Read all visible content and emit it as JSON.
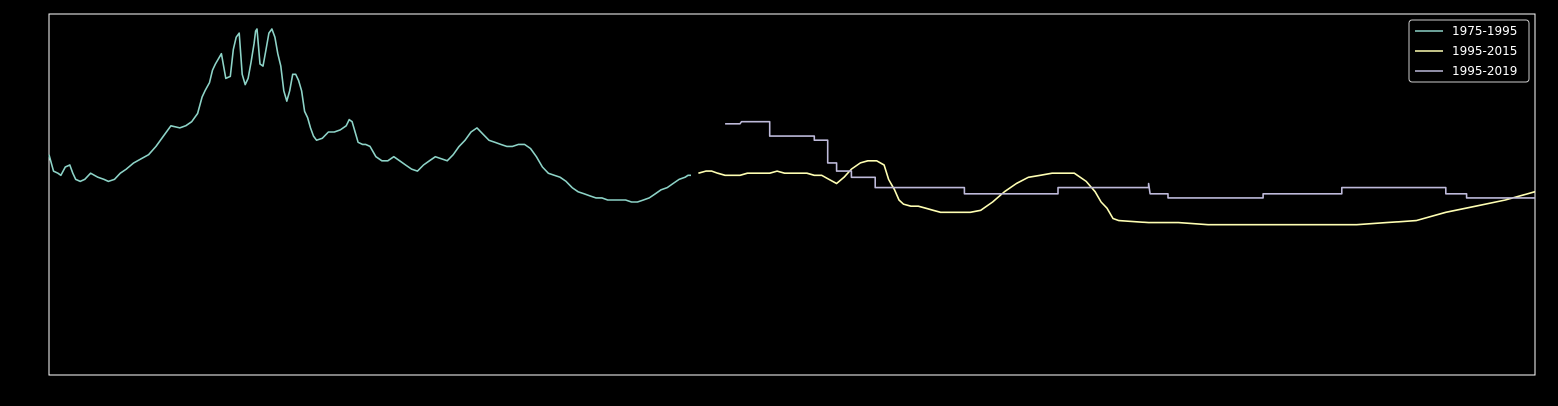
{
  "chart_data": {
    "type": "line",
    "title": "",
    "xlabel": "",
    "ylabel": "",
    "xlim": [
      0,
      1000
    ],
    "ylim": [
      0,
      100
    ],
    "grid": false,
    "axes_visible": false,
    "background": "#000000",
    "legend_position": "top-right",
    "series": [
      {
        "name": "1975-1995",
        "color": "#8dd3c7",
        "points": [
          [
            0,
            39
          ],
          [
            3,
            31
          ],
          [
            6,
            30
          ],
          [
            8,
            29
          ],
          [
            11,
            33
          ],
          [
            14,
            34
          ],
          [
            16,
            30
          ],
          [
            18,
            27
          ],
          [
            21,
            26
          ],
          [
            24,
            27
          ],
          [
            28,
            30
          ],
          [
            33,
            28
          ],
          [
            37,
            27
          ],
          [
            40,
            26
          ],
          [
            44,
            27
          ],
          [
            48,
            30
          ],
          [
            52,
            32
          ],
          [
            57,
            35
          ],
          [
            62,
            37
          ],
          [
            67,
            39
          ],
          [
            72,
            43
          ],
          [
            77,
            48
          ],
          [
            82,
            53
          ],
          [
            88,
            52
          ],
          [
            92,
            53
          ],
          [
            96,
            55
          ],
          [
            100,
            59
          ],
          [
            103,
            67
          ],
          [
            105,
            70
          ],
          [
            108,
            74
          ],
          [
            110,
            80
          ],
          [
            112,
            83
          ],
          [
            116,
            88
          ],
          [
            119,
            76
          ],
          [
            122,
            77
          ],
          [
            124,
            90
          ],
          [
            126,
            96
          ],
          [
            128,
            98
          ],
          [
            130,
            78
          ],
          [
            132,
            73
          ],
          [
            134,
            76
          ],
          [
            136,
            84
          ],
          [
            138,
            93
          ],
          [
            139,
            99
          ],
          [
            140,
            100
          ],
          [
            142,
            83
          ],
          [
            144,
            82
          ],
          [
            146,
            90
          ],
          [
            148,
            98
          ],
          [
            150,
            100
          ],
          [
            152,
            96
          ],
          [
            154,
            88
          ],
          [
            156,
            82
          ],
          [
            158,
            70
          ],
          [
            160,
            65
          ],
          [
            162,
            70
          ],
          [
            164,
            78
          ],
          [
            166,
            78
          ],
          [
            168,
            75
          ],
          [
            170,
            70
          ],
          [
            172,
            60
          ],
          [
            174,
            57
          ],
          [
            176,
            52
          ],
          [
            178,
            48
          ],
          [
            180,
            46
          ],
          [
            184,
            47
          ],
          [
            188,
            50
          ],
          [
            192,
            50
          ],
          [
            196,
            51
          ],
          [
            200,
            53
          ],
          [
            202,
            56
          ],
          [
            204,
            55
          ],
          [
            206,
            50
          ],
          [
            208,
            45
          ],
          [
            211,
            44
          ],
          [
            213,
            44
          ],
          [
            216,
            43
          ],
          [
            220,
            38
          ],
          [
            224,
            36
          ],
          [
            228,
            36
          ],
          [
            232,
            38
          ],
          [
            236,
            36
          ],
          [
            240,
            34
          ],
          [
            244,
            32
          ],
          [
            248,
            31
          ],
          [
            252,
            34
          ],
          [
            256,
            36
          ],
          [
            260,
            38
          ],
          [
            264,
            37
          ],
          [
            268,
            36
          ],
          [
            272,
            39
          ],
          [
            276,
            43
          ],
          [
            280,
            46
          ],
          [
            284,
            50
          ],
          [
            288,
            52
          ],
          [
            292,
            49
          ],
          [
            296,
            46
          ],
          [
            300,
            45
          ],
          [
            304,
            44
          ],
          [
            308,
            43
          ],
          [
            312,
            43
          ],
          [
            316,
            44
          ],
          [
            320,
            44
          ],
          [
            324,
            42
          ],
          [
            328,
            38
          ],
          [
            332,
            33
          ],
          [
            336,
            30
          ],
          [
            340,
            29
          ],
          [
            344,
            28
          ],
          [
            348,
            26
          ],
          [
            352,
            23
          ],
          [
            356,
            21
          ],
          [
            360,
            20
          ],
          [
            364,
            19
          ],
          [
            368,
            18
          ],
          [
            372,
            18
          ],
          [
            376,
            17
          ],
          [
            380,
            17
          ],
          [
            384,
            17
          ],
          [
            388,
            17
          ],
          [
            392,
            16
          ],
          [
            396,
            16
          ],
          [
            400,
            17
          ],
          [
            404,
            18
          ],
          [
            408,
            20
          ],
          [
            412,
            22
          ],
          [
            416,
            23
          ],
          [
            420,
            25
          ],
          [
            424,
            27
          ],
          [
            428,
            28
          ],
          [
            430,
            29
          ],
          [
            432,
            29
          ]
        ]
      },
      {
        "name": "1995-2015",
        "color": "#ffffb3",
        "points": [
          [
            437,
            30
          ],
          [
            442,
            31
          ],
          [
            446,
            31
          ],
          [
            450,
            30
          ],
          [
            455,
            29
          ],
          [
            460,
            29
          ],
          [
            465,
            29
          ],
          [
            470,
            30
          ],
          [
            475,
            30
          ],
          [
            480,
            30
          ],
          [
            485,
            30
          ],
          [
            490,
            31
          ],
          [
            495,
            30
          ],
          [
            500,
            30
          ],
          [
            505,
            30
          ],
          [
            510,
            30
          ],
          [
            515,
            29
          ],
          [
            520,
            29
          ],
          [
            525,
            27
          ],
          [
            530,
            25
          ],
          [
            535,
            28
          ],
          [
            540,
            32
          ],
          [
            546,
            35
          ],
          [
            551,
            36
          ],
          [
            557,
            36
          ],
          [
            562,
            34
          ],
          [
            565,
            27
          ],
          [
            569,
            22
          ],
          [
            572,
            17
          ],
          [
            575,
            15
          ],
          [
            580,
            14
          ],
          [
            585,
            14
          ],
          [
            590,
            13
          ],
          [
            595,
            12
          ],
          [
            600,
            11
          ],
          [
            610,
            11
          ],
          [
            620,
            11
          ],
          [
            627,
            12
          ],
          [
            635,
            16
          ],
          [
            643,
            21
          ],
          [
            651,
            25
          ],
          [
            659,
            28
          ],
          [
            667,
            29
          ],
          [
            675,
            30
          ],
          [
            683,
            30
          ],
          [
            690,
            30
          ],
          [
            698,
            26
          ],
          [
            704,
            21
          ],
          [
            708,
            16
          ],
          [
            712,
            13
          ],
          [
            716,
            8
          ],
          [
            720,
            7
          ],
          [
            740,
            6
          ],
          [
            760,
            6
          ],
          [
            780,
            5
          ],
          [
            800,
            5
          ],
          [
            840,
            5
          ],
          [
            880,
            5
          ],
          [
            900,
            6
          ],
          [
            920,
            7
          ],
          [
            940,
            11
          ],
          [
            960,
            14
          ],
          [
            980,
            17
          ],
          [
            1000,
            21
          ]
        ]
      },
      {
        "name": "1995-2019",
        "color": "#bebada",
        "points": [
          [
            455,
            54
          ],
          [
            465,
            54
          ],
          [
            466,
            55
          ],
          [
            485,
            55
          ],
          [
            485,
            48
          ],
          [
            515,
            48
          ],
          [
            515,
            46
          ],
          [
            524,
            46
          ],
          [
            524,
            35
          ],
          [
            530,
            35
          ],
          [
            530,
            31
          ],
          [
            540,
            31
          ],
          [
            540,
            28
          ],
          [
            556,
            28
          ],
          [
            556,
            23
          ],
          [
            616,
            23
          ],
          [
            616,
            20
          ],
          [
            679,
            20
          ],
          [
            679,
            23
          ],
          [
            740,
            23
          ],
          [
            740,
            25
          ],
          [
            741,
            20
          ],
          [
            753,
            20
          ],
          [
            753,
            18
          ],
          [
            817,
            18
          ],
          [
            817,
            20
          ],
          [
            870,
            20
          ],
          [
            870,
            23
          ],
          [
            940,
            23
          ],
          [
            940,
            20
          ],
          [
            954,
            20
          ],
          [
            954,
            18
          ],
          [
            1000,
            18
          ]
        ]
      }
    ]
  }
}
